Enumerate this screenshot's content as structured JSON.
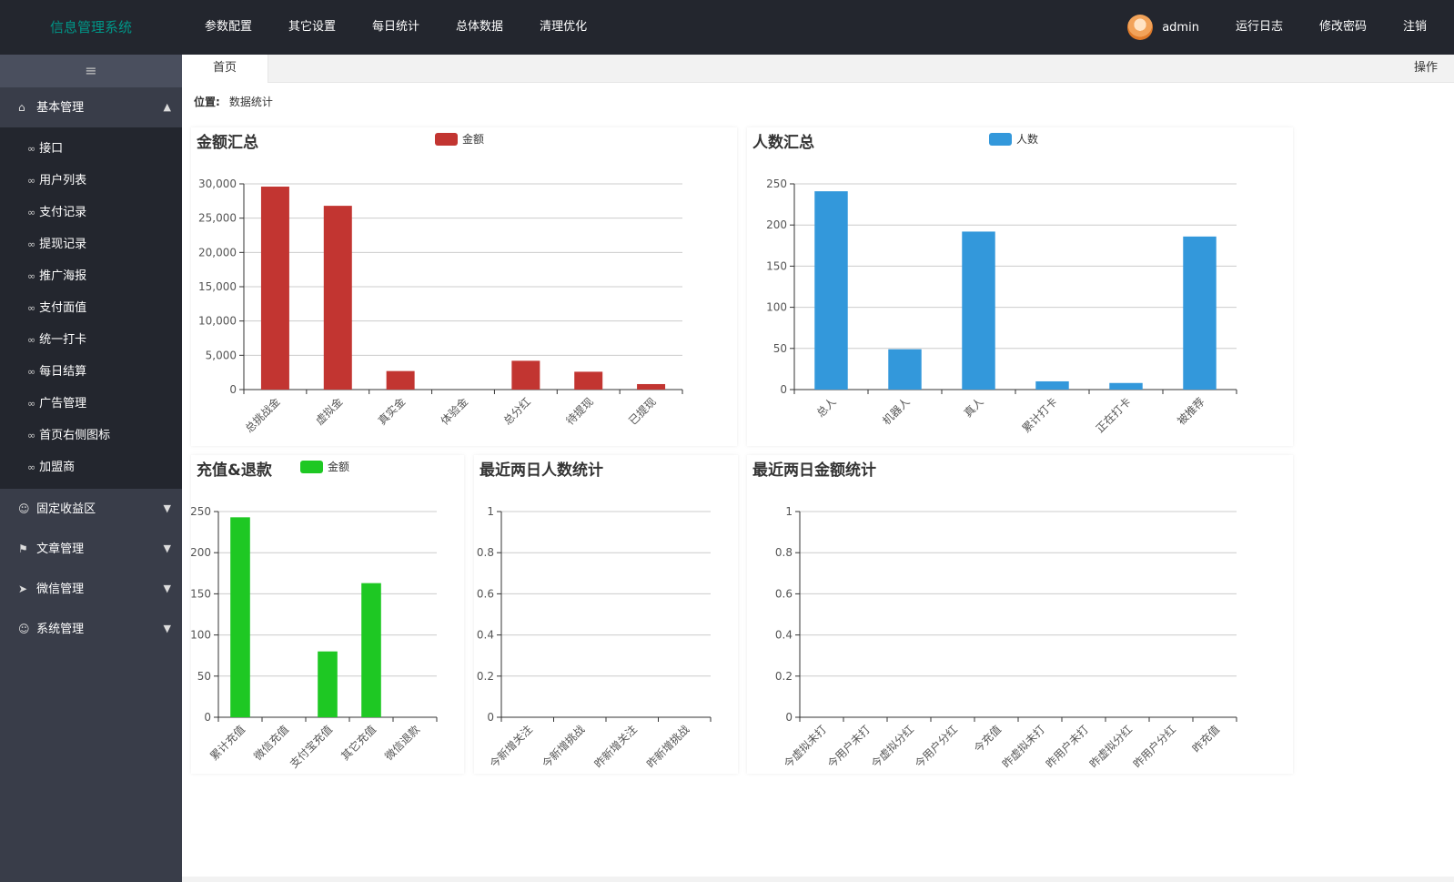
{
  "app": {
    "title": "信息管理系统"
  },
  "topnav": [
    {
      "label": "参数配置"
    },
    {
      "label": "其它设置"
    },
    {
      "label": "每日统计"
    },
    {
      "label": "总体数据"
    },
    {
      "label": "清理优化"
    }
  ],
  "rightnav": {
    "username": "admin",
    "items": [
      {
        "label": "运行日志"
      },
      {
        "label": "修改密码"
      },
      {
        "label": "注销"
      }
    ]
  },
  "sidebar": {
    "toggle_icon": "indent-icon",
    "groups": [
      {
        "label": "基本管理",
        "icon": "home-icon",
        "open": true,
        "items": [
          "接口",
          "用户列表",
          "支付记录",
          "提现记录",
          "推广海报",
          "支付面值",
          "统一打卡",
          "每日结算",
          "广告管理",
          "首页右侧图标",
          "加盟商"
        ]
      },
      {
        "label": "固定收益区",
        "icon": "user-icon"
      },
      {
        "label": "文章管理",
        "icon": "flag-icon"
      },
      {
        "label": "微信管理",
        "icon": "send-icon"
      },
      {
        "label": "系统管理",
        "icon": "user-icon"
      }
    ]
  },
  "tabs": {
    "home": "首页",
    "ops": "操作"
  },
  "breadcrumb": {
    "label": "位置:",
    "value": "数据统计"
  },
  "colors": {
    "red": "#c23531",
    "blue": "#3398db",
    "green": "#1ec823",
    "header": "#23262e",
    "sidebar": "#393d49",
    "accent": "#009688"
  },
  "chart_data": [
    {
      "id": "amount",
      "type": "bar",
      "title": "金额汇总",
      "categories": [
        "总挑战金",
        "虚拟金",
        "真实金",
        "体验金",
        "总分红",
        "待提现",
        "已提现"
      ],
      "series": [
        {
          "name": "金额",
          "values": [
            29600,
            26800,
            2700,
            0,
            4200,
            2600,
            800
          ],
          "color": "#c23531"
        }
      ],
      "ylim": [
        0,
        30000
      ],
      "yticks": [
        0,
        5000,
        10000,
        15000,
        20000,
        25000,
        30000
      ],
      "ytick_labels": [
        "0",
        "5,000",
        "10,000",
        "15,000",
        "20,000",
        "25,000",
        "30,000"
      ]
    },
    {
      "id": "people",
      "type": "bar",
      "title": "人数汇总",
      "categories": [
        "总人",
        "机器人",
        "真人",
        "累计打卡",
        "正在打卡",
        "被推荐"
      ],
      "series": [
        {
          "name": "人数",
          "values": [
            241,
            49,
            192,
            10,
            8,
            186
          ],
          "color": "#3398db"
        }
      ],
      "ylim": [
        0,
        250
      ],
      "yticks": [
        0,
        50,
        100,
        150,
        200,
        250
      ],
      "ytick_labels": [
        "0",
        "50",
        "100",
        "150",
        "200",
        "250"
      ]
    },
    {
      "id": "recharge",
      "type": "bar",
      "title": "充值&退款",
      "categories": [
        "累计充值",
        "微信充值",
        "支付宝充值",
        "其它充值",
        "微信退款"
      ],
      "series": [
        {
          "name": "金额",
          "values": [
            243,
            0,
            80,
            163,
            0
          ],
          "color": "#1ec823"
        }
      ],
      "ylim": [
        0,
        250
      ],
      "yticks": [
        0,
        50,
        100,
        150,
        200,
        250
      ],
      "ytick_labels": [
        "0",
        "50",
        "100",
        "150",
        "200",
        "250"
      ]
    },
    {
      "id": "people2d",
      "type": "bar",
      "title": "最近两日人数统计",
      "categories": [
        "今新增关注",
        "今新增挑战",
        "昨新增关注",
        "昨新增挑战"
      ],
      "series": [],
      "ylim": [
        0,
        1
      ],
      "yticks": [
        0,
        0.2,
        0.4,
        0.6,
        0.8,
        1
      ],
      "ytick_labels": [
        "0",
        "0.2",
        "0.4",
        "0.6",
        "0.8",
        "1"
      ]
    },
    {
      "id": "amount2d",
      "type": "bar",
      "title": "最近两日金额统计",
      "categories": [
        "今虚拟未打",
        "今用户未打",
        "今虚拟分红",
        "今用户分红",
        "今充值",
        "昨虚拟未打",
        "昨用户未打",
        "昨虚拟分红",
        "昨用户分红",
        "昨充值"
      ],
      "series": [],
      "ylim": [
        0,
        1
      ],
      "yticks": [
        0,
        0.2,
        0.4,
        0.6,
        0.8,
        1
      ],
      "ytick_labels": [
        "0",
        "0.2",
        "0.4",
        "0.6",
        "0.8",
        "1"
      ]
    }
  ]
}
